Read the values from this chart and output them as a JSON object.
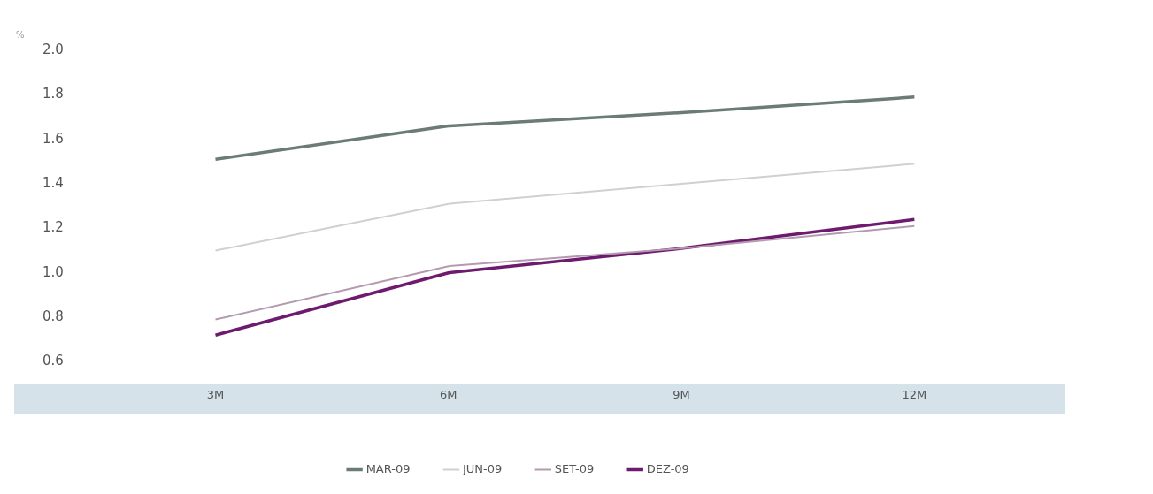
{
  "chart_data": {
    "type": "line",
    "ylabel": "%",
    "categories": [
      "3M",
      "6M",
      "9M",
      "12M"
    ],
    "series": [
      {
        "name": "MAR-09",
        "color": "#6b7b76",
        "values": [
          1.51,
          1.66,
          1.72,
          1.79
        ]
      },
      {
        "name": "JUN-09",
        "color": "#d0d0d0",
        "values": [
          1.1,
          1.31,
          1.4,
          1.49
        ]
      },
      {
        "name": "SET-09",
        "color": "#b39ab0",
        "values": [
          0.79,
          1.03,
          1.11,
          1.21
        ]
      },
      {
        "name": "DEZ-09",
        "color": "#6e1a6e",
        "values": [
          0.72,
          1.0,
          1.11,
          1.24
        ]
      }
    ],
    "ylim": [
      0.6,
      2.0
    ],
    "yticks": [
      {
        "value": 0.6,
        "label": "0.6"
      },
      {
        "value": 0.8,
        "label": "0.8"
      },
      {
        "value": 1.0,
        "label": "1.0"
      },
      {
        "value": 1.2,
        "label": "1.2"
      },
      {
        "value": 1.4,
        "label": "1.4"
      },
      {
        "value": 1.6,
        "label": "1.6"
      },
      {
        "value": 1.8,
        "label": "1.8"
      },
      {
        "value": 2.0,
        "label": "2.0"
      }
    ],
    "grid": false,
    "legend": "bottom",
    "marker": "none",
    "line_style": "solid"
  }
}
